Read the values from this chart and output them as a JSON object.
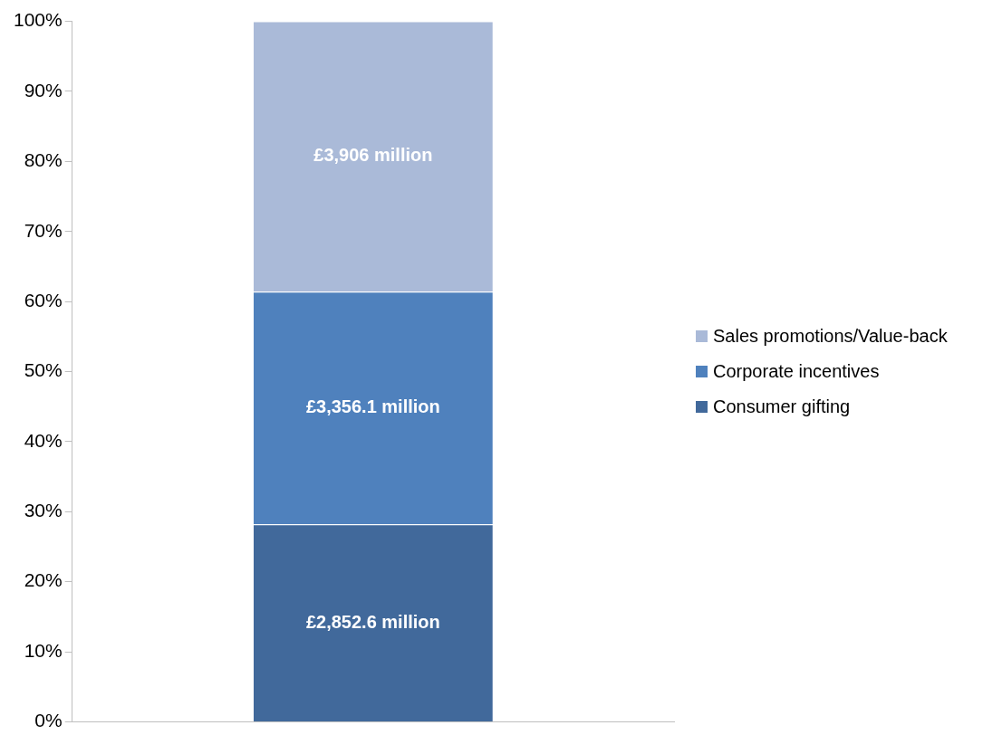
{
  "chart_data": {
    "type": "bar",
    "stacked": true,
    "categories": [
      null
    ],
    "series": [
      {
        "name": "Consumer gifting",
        "color": "#41699b",
        "values": [
          28.2
        ]
      },
      {
        "name": "Corporate incentives",
        "color": "#4f81bd",
        "values": [
          33.2
        ]
      },
      {
        "name": "Sales promotions/Value-back",
        "color": "#aabad8",
        "values": [
          38.6
        ]
      }
    ],
    "annotations": [
      "£2,852.6 million",
      "£3,356.1 million",
      "£3,906 million"
    ],
    "ylim": [
      0,
      100
    ],
    "yticks": [
      {
        "value": 0,
        "label": "0%"
      },
      {
        "value": 10,
        "label": "10%"
      },
      {
        "value": 20,
        "label": "20%"
      },
      {
        "value": 30,
        "label": "30%"
      },
      {
        "value": 40,
        "label": "40%"
      },
      {
        "value": 50,
        "label": "50%"
      },
      {
        "value": 60,
        "label": "60%"
      },
      {
        "value": 70,
        "label": "70%"
      },
      {
        "value": 80,
        "label": "80%"
      },
      {
        "value": 90,
        "label": "90%"
      },
      {
        "value": 100,
        "label": "100%"
      }
    ],
    "grid": false,
    "legend": "right"
  }
}
